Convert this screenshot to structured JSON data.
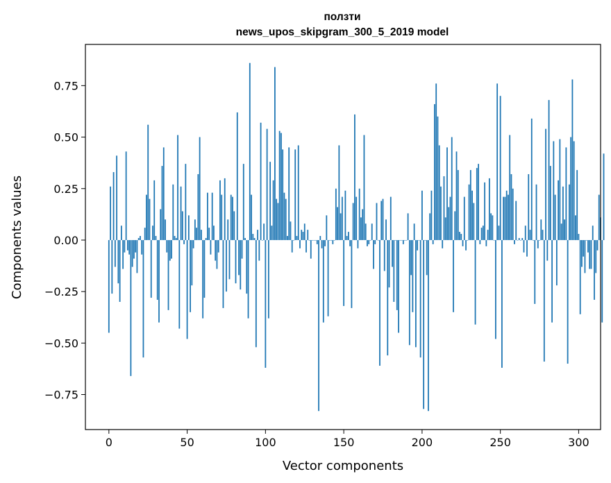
{
  "chart_data": {
    "type": "bar",
    "title_line1": "ползти",
    "title_line2": "news_upos_skipgram_300_5_2019 model",
    "xlabel": "Vector components",
    "ylabel": "Components values",
    "xlim": [
      -15,
      314
    ],
    "ylim": [
      -0.92,
      0.95
    ],
    "x_ticks": [
      0,
      50,
      100,
      150,
      200,
      250,
      300
    ],
    "y_ticks": [
      -0.75,
      -0.5,
      -0.25,
      0.0,
      0.25,
      0.5,
      0.75
    ],
    "y_tick_labels": [
      "−0.75",
      "−0.50",
      "−0.25",
      "0.00",
      "0.25",
      "0.50",
      "0.75"
    ],
    "bar_color": "#1f77b4",
    "values": [
      -0.45,
      0.26,
      -0.26,
      0.33,
      -0.13,
      0.41,
      -0.21,
      -0.3,
      0.07,
      -0.14,
      -0.06,
      0.43,
      -0.05,
      -0.07,
      -0.66,
      -0.13,
      -0.09,
      -0.06,
      -0.16,
      0.01,
      0.02,
      -0.07,
      -0.57,
      0.06,
      0.22,
      0.56,
      0.2,
      -0.28,
      0.07,
      0.29,
      0.02,
      -0.29,
      -0.4,
      0.15,
      0.36,
      0.45,
      0.1,
      -0.06,
      -0.34,
      -0.1,
      -0.09,
      0.27,
      0.02,
      0.01,
      0.51,
      -0.43,
      0.26,
      0.14,
      -0.02,
      0.37,
      -0.48,
      0.12,
      -0.35,
      -0.22,
      -0.04,
      0.1,
      0.06,
      0.32,
      0.5,
      0.05,
      -0.38,
      -0.28,
      0.01,
      0.23,
      0.06,
      -0.07,
      0.23,
      0.07,
      -0.1,
      -0.14,
      -0.06,
      0.29,
      0.22,
      -0.33,
      0.3,
      -0.25,
      0.1,
      -0.19,
      0.22,
      0.21,
      0.14,
      -0.21,
      0.62,
      -0.17,
      -0.24,
      -0.09,
      0.37,
      0.01,
      -0.26,
      -0.38,
      0.86,
      0.22,
      0.03,
      0.01,
      -0.52,
      0.05,
      -0.1,
      0.57,
      0.0,
      0.08,
      -0.62,
      0.54,
      -0.38,
      0.38,
      0.07,
      0.29,
      0.84,
      0.2,
      0.18,
      0.53,
      0.52,
      0.44,
      0.23,
      0.2,
      0.02,
      0.45,
      0.09,
      -0.06,
      0.0,
      0.44,
      0.02,
      0.46,
      -0.04,
      0.05,
      0.04,
      0.08,
      -0.06,
      0.05,
      0.0,
      -0.09,
      0.0,
      0.0,
      0.0,
      -0.02,
      -0.83,
      0.02,
      -0.04,
      -0.4,
      -0.03,
      0.12,
      -0.37,
      0.0,
      0.0,
      -0.02,
      0.0,
      0.25,
      0.16,
      0.46,
      0.13,
      0.21,
      -0.32,
      0.24,
      0.02,
      0.04,
      -0.03,
      -0.33,
      0.18,
      0.61,
      0.21,
      -0.04,
      0.25,
      0.11,
      0.15,
      0.51,
      0.08,
      -0.03,
      -0.02,
      0.0,
      0.08,
      -0.14,
      -0.02,
      0.18,
      0.0,
      -0.61,
      0.19,
      0.2,
      -0.15,
      0.1,
      -0.56,
      -0.23,
      0.21,
      -0.13,
      -0.3,
      0.0,
      -0.34,
      -0.45,
      0.0,
      0.0,
      -0.02,
      0.0,
      0.0,
      0.13,
      -0.51,
      -0.17,
      -0.35,
      0.08,
      -0.52,
      -0.05,
      0.0,
      -0.57,
      0.24,
      -0.82,
      0.0,
      -0.17,
      -0.83,
      0.13,
      0.24,
      -0.02,
      0.66,
      0.76,
      0.6,
      0.46,
      0.26,
      -0.04,
      0.31,
      0.11,
      0.45,
      0.16,
      0.21,
      0.5,
      -0.35,
      0.14,
      0.43,
      0.34,
      0.04,
      0.03,
      -0.03,
      0.21,
      -0.05,
      0.0,
      0.27,
      0.34,
      0.24,
      0.18,
      -0.41,
      0.35,
      0.37,
      -0.02,
      0.06,
      0.07,
      0.28,
      -0.03,
      0.05,
      0.3,
      0.13,
      0.12,
      0.0,
      -0.48,
      0.76,
      0.07,
      0.7,
      -0.62,
      0.21,
      0.21,
      0.24,
      0.22,
      0.51,
      0.32,
      0.25,
      -0.02,
      0.19,
      0.0,
      0.01,
      0.0,
      0.01,
      -0.06,
      0.07,
      -0.08,
      0.32,
      0.05,
      0.59,
      0.0,
      -0.31,
      0.27,
      -0.04,
      0.0,
      0.1,
      0.05,
      -0.59,
      0.54,
      -0.1,
      0.68,
      0.36,
      -0.4,
      0.48,
      0.22,
      -0.22,
      0.29,
      0.49,
      0.08,
      0.26,
      0.1,
      0.45,
      -0.6,
      0.27,
      0.5,
      0.78,
      0.48,
      0.12,
      0.34,
      0.03,
      -0.36,
      -0.13,
      -0.08,
      -0.16,
      0.0,
      -0.06,
      -0.14,
      -0.14,
      0.07,
      -0.29,
      -0.16,
      -0.05,
      0.22,
      0.11,
      -0.4,
      0.42
    ]
  }
}
